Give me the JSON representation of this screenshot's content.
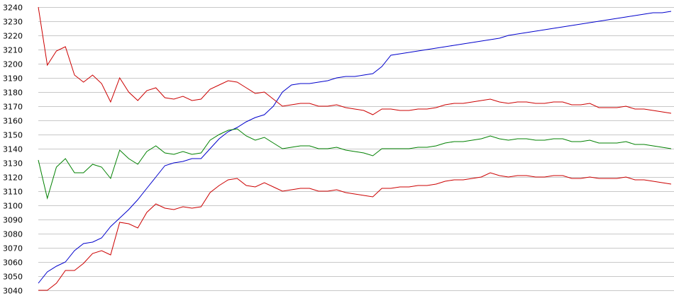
{
  "chart_data": {
    "type": "line",
    "title": "",
    "xlabel": "",
    "ylabel": "",
    "ylim": [
      3040,
      3240
    ],
    "yticks": [
      3240,
      3230,
      3220,
      3210,
      3200,
      3190,
      3180,
      3170,
      3160,
      3150,
      3140,
      3130,
      3120,
      3110,
      3100,
      3090,
      3080,
      3070,
      3060,
      3050,
      3040
    ],
    "grid": true,
    "x": [
      0,
      1,
      2,
      3,
      4,
      5,
      6,
      7,
      8,
      9,
      10,
      11,
      12,
      13,
      14,
      15,
      16,
      17,
      18,
      19,
      20,
      21,
      22,
      23,
      24,
      25,
      26,
      27,
      28,
      29,
      30,
      31,
      32,
      33,
      34,
      35,
      36,
      37,
      38,
      39,
      40,
      41,
      42,
      43,
      44,
      45,
      46,
      47,
      48,
      49,
      50,
      51,
      52,
      53,
      54,
      55,
      56,
      57,
      58,
      59,
      60,
      61,
      62,
      63,
      64,
      65,
      66,
      67,
      68,
      69,
      70
    ],
    "xlim": [
      0,
      70
    ],
    "series": [
      {
        "color": "#0000cc",
        "values": [
          3045,
          3053,
          3057,
          3060,
          3068,
          3073,
          3074,
          3077,
          3085,
          3091,
          3097,
          3104,
          3112,
          3120,
          3128,
          3130,
          3131,
          3133,
          3133,
          3140,
          3147,
          3152,
          3155,
          3159,
          3162,
          3164,
          3170,
          3180,
          3185,
          3186,
          3186,
          3187,
          3188,
          3190,
          3191,
          3191,
          3192,
          3193,
          3198,
          3206,
          3207,
          3208,
          3209,
          3210,
          3211,
          3212,
          3213,
          3214,
          3215,
          3216,
          3217,
          3218,
          3220,
          3221,
          3222,
          3223,
          3224,
          3225,
          3226,
          3227,
          3228,
          3229,
          3230,
          3231,
          3232,
          3233,
          3234,
          3235,
          3236,
          3236,
          3237
        ]
      },
      {
        "color": "#cc0000",
        "values": [
          3240,
          3199,
          3209,
          3212,
          3192,
          3187,
          3192,
          3186,
          3173,
          3190,
          3180,
          3174,
          3181,
          3183,
          3176,
          3175,
          3177,
          3174,
          3175,
          3182,
          3185,
          3188,
          3187,
          3183,
          3179,
          3180,
          3175,
          3170,
          3171,
          3172,
          3172,
          3170,
          3170,
          3171,
          3169,
          3168,
          3167,
          3164,
          3168,
          3168,
          3167,
          3167,
          3168,
          3168,
          3169,
          3171,
          3172,
          3172,
          3173,
          3174,
          3175,
          3173,
          3172,
          3173,
          3173,
          3172,
          3172,
          3173,
          3173,
          3171,
          3171,
          3172,
          3169,
          3169,
          3169,
          3170,
          3168,
          3168,
          3167,
          3166,
          3165
        ]
      },
      {
        "color": "#008000",
        "values": [
          3132,
          3105,
          3127,
          3133,
          3123,
          3123,
          3129,
          3127,
          3119,
          3139,
          3133,
          3129,
          3138,
          3142,
          3137,
          3136,
          3138,
          3136,
          3137,
          3146,
          3150,
          3153,
          3154,
          3149,
          3146,
          3148,
          3144,
          3140,
          3141,
          3142,
          3142,
          3140,
          3140,
          3141,
          3139,
          3138,
          3137,
          3135,
          3140,
          3140,
          3140,
          3140,
          3141,
          3141,
          3142,
          3144,
          3145,
          3145,
          3146,
          3147,
          3149,
          3147,
          3146,
          3147,
          3147,
          3146,
          3146,
          3147,
          3147,
          3145,
          3145,
          3146,
          3144,
          3144,
          3144,
          3145,
          3143,
          3143,
          3142,
          3141,
          3140
        ]
      },
      {
        "color": "#cc0000",
        "values": [
          3040,
          3040,
          3045,
          3054,
          3054,
          3059,
          3066,
          3068,
          3065,
          3088,
          3087,
          3084,
          3095,
          3101,
          3098,
          3097,
          3099,
          3098,
          3099,
          3109,
          3114,
          3118,
          3119,
          3114,
          3113,
          3116,
          3113,
          3110,
          3111,
          3112,
          3112,
          3110,
          3110,
          3111,
          3109,
          3108,
          3107,
          3106,
          3112,
          3112,
          3113,
          3113,
          3114,
          3114,
          3115,
          3117,
          3118,
          3118,
          3119,
          3120,
          3123,
          3121,
          3120,
          3121,
          3121,
          3120,
          3120,
          3121,
          3121,
          3119,
          3119,
          3120,
          3119,
          3119,
          3119,
          3120,
          3118,
          3118,
          3117,
          3116,
          3115
        ]
      }
    ]
  }
}
